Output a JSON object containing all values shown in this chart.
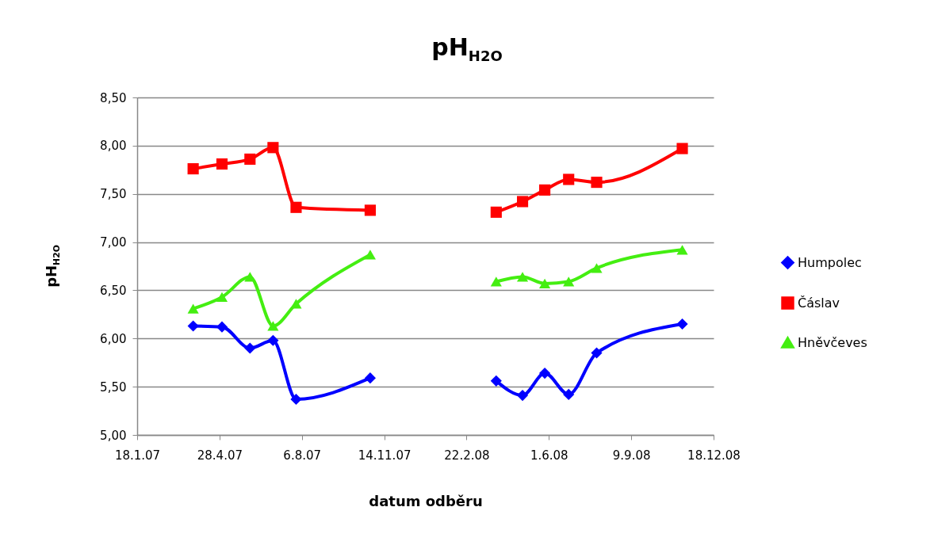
{
  "chart_data": {
    "type": "line",
    "title": "pH$_{H2O}$",
    "xlabel": "datum odběru",
    "ylabel": "pH$_{H2O}$",
    "x": [
      "2007-03-27",
      "2007-05-01",
      "2007-06-04",
      "2007-07-02",
      "2007-07-30",
      "2007-10-28",
      "2008-01-15",
      "2008-03-29",
      "2008-04-30",
      "2008-05-27",
      "2008-06-25",
      "2008-07-29",
      "2008-11-10"
    ],
    "series": [
      {
        "name": "Humpolec",
        "color": "#0000ff",
        "marker": "diamond",
        "values": [
          6.13,
          6.12,
          5.9,
          5.98,
          5.37,
          5.59,
          null,
          5.56,
          5.41,
          5.64,
          5.42,
          5.85,
          6.15
        ]
      },
      {
        "name": "Čáslav",
        "color": "#ff0000",
        "marker": "square",
        "values": [
          7.76,
          7.81,
          7.86,
          7.98,
          7.36,
          7.33,
          null,
          7.31,
          7.42,
          7.54,
          7.65,
          7.62,
          7.97
        ]
      },
      {
        "name": "Hněvčeves",
        "color": "#44ee11",
        "marker": "triangle",
        "values": [
          6.31,
          6.43,
          6.64,
          6.13,
          6.36,
          6.87,
          null,
          6.59,
          6.64,
          6.57,
          6.59,
          6.73,
          6.92
        ]
      }
    ],
    "xlim": [
      "2007-01-18",
      "2008-12-18"
    ],
    "xticks": [
      {
        "value": "2007-01-18",
        "label": "18.1.07"
      },
      {
        "value": "2007-04-28",
        "label": "28.4.07"
      },
      {
        "value": "2007-08-06",
        "label": "6.8.07"
      },
      {
        "value": "2007-11-14",
        "label": "14.11.07"
      },
      {
        "value": "2008-02-22",
        "label": "22.2.08"
      },
      {
        "value": "2008-06-01",
        "label": "1.6.08"
      },
      {
        "value": "2008-09-09",
        "label": "9.9.08"
      },
      {
        "value": "2008-12-18",
        "label": "18.12.08"
      }
    ],
    "ylim": [
      5,
      8.5
    ],
    "yticks": [
      {
        "value": 5,
        "label": "5,00"
      },
      {
        "value": 5.5,
        "label": "5,50"
      },
      {
        "value": 6,
        "label": "6,00"
      },
      {
        "value": 6.5,
        "label": "6,50"
      },
      {
        "value": 7,
        "label": "7,00"
      },
      {
        "value": 7.5,
        "label": "7,50"
      },
      {
        "value": 8,
        "label": "8,00"
      },
      {
        "value": 8.5,
        "label": "8,50"
      }
    ],
    "grid": "y",
    "legend": "right",
    "line_style": "solid"
  }
}
